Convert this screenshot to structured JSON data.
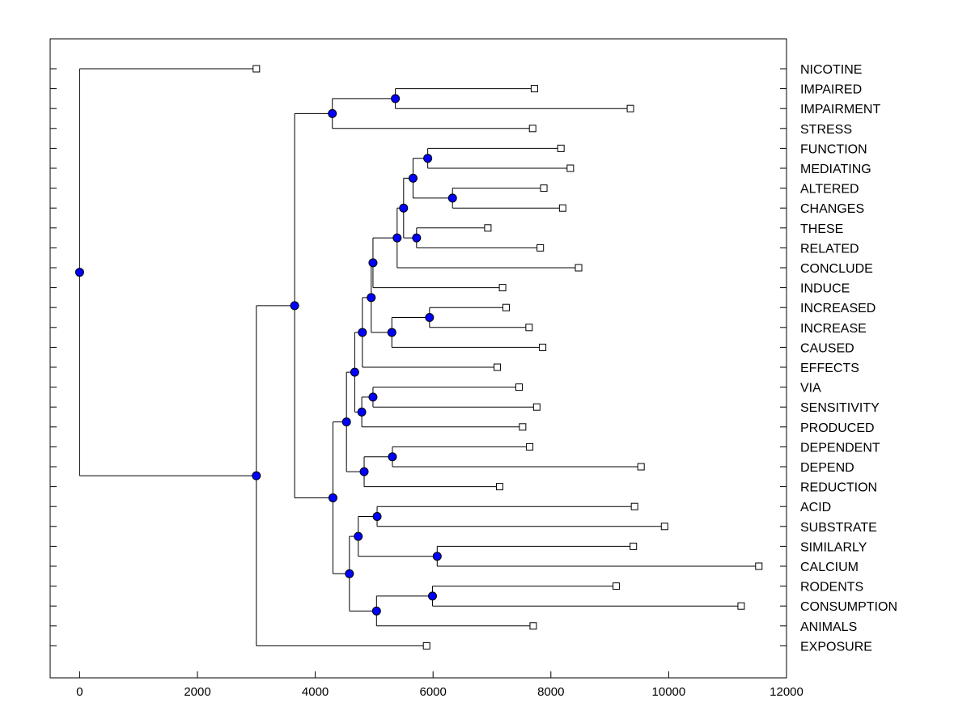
{
  "chart_data": {
    "type": "dendrogram",
    "title": "",
    "xlabel": "",
    "ylabel": "",
    "xlim": [
      -500,
      12000
    ],
    "x_ticks": [
      0,
      2000,
      4000,
      6000,
      8000,
      10000,
      12000
    ],
    "x_tick_labels": [
      "0",
      "2000",
      "4000",
      "6000",
      "8000",
      "10000",
      "12000"
    ],
    "leaves": [
      {
        "label": "NICOTINE",
        "value": 3000
      },
      {
        "label": "IMPAIRED",
        "value": 7720
      },
      {
        "label": "IMPAIRMENT",
        "value": 9350
      },
      {
        "label": "STRESS",
        "value": 7690
      },
      {
        "label": "FUNCTION",
        "value": 8170
      },
      {
        "label": "MEDIATING",
        "value": 8330
      },
      {
        "label": "ALTERED",
        "value": 7880
      },
      {
        "label": "CHANGES",
        "value": 8200
      },
      {
        "label": "THESE",
        "value": 6930
      },
      {
        "label": "RELATED",
        "value": 7820
      },
      {
        "label": "CONCLUDE",
        "value": 8470
      },
      {
        "label": "INDUCE",
        "value": 7180
      },
      {
        "label": "INCREASED",
        "value": 7240
      },
      {
        "label": "INCREASE",
        "value": 7630
      },
      {
        "label": "CAUSED",
        "value": 7860
      },
      {
        "label": "EFFECTS",
        "value": 7090
      },
      {
        "label": "VIA",
        "value": 7460
      },
      {
        "label": "SENSITIVITY",
        "value": 7760
      },
      {
        "label": "PRODUCED",
        "value": 7520
      },
      {
        "label": "DEPENDENT",
        "value": 7640
      },
      {
        "label": "DEPEND",
        "value": 9530
      },
      {
        "label": "REDUCTION",
        "value": 7130
      },
      {
        "label": "ACID",
        "value": 9420
      },
      {
        "label": "SUBSTRATE",
        "value": 9930
      },
      {
        "label": "SIMILARLY",
        "value": 9400
      },
      {
        "label": "CALCIUM",
        "value": 11530
      },
      {
        "label": "RODENTS",
        "value": 9110
      },
      {
        "label": "CONSUMPTION",
        "value": 11230
      },
      {
        "label": "ANIMALS",
        "value": 7700
      },
      {
        "label": "EXPOSURE",
        "value": 5890
      }
    ],
    "tree": {
      "h": 0,
      "c": [
        0,
        {
          "h": 3000,
          "c": [
            {
              "h": 3650,
              "c": [
                {
                  "h": 4290,
                  "c": [
                    {
                      "h": 5360,
                      "c": [
                        1,
                        2
                      ]
                    },
                    3
                  ]
                },
                {
                  "h": 4300,
                  "c": [
                    {
                      "h": 4530,
                      "c": [
                        {
                          "h": 4670,
                          "c": [
                            {
                              "h": 4800,
                              "c": [
                                {
                                  "h": 4950,
                                  "c": [
                                    {
                                      "h": 4980,
                                      "c": [
                                        {
                                          "h": 5390,
                                          "c": [
                                            {
                                              "h": 5500,
                                              "c": [
                                                {
                                                  "h": 5660,
                                                  "c": [
                                                    {
                                                      "h": 5910,
                                                      "c": [
                                                        4,
                                                        5
                                                      ]
                                                    },
                                                    {
                                                      "h": 6330,
                                                      "c": [
                                                        6,
                                                        7
                                                      ]
                                                    }
                                                  ]
                                                },
                                                {
                                                  "h": 5720,
                                                  "c": [
                                                    8,
                                                    9
                                                  ]
                                                }
                                              ]
                                            },
                                            10
                                          ]
                                        },
                                        11
                                      ]
                                    },
                                    {
                                      "h": 5300,
                                      "c": [
                                        {
                                          "h": 5940,
                                          "c": [
                                            12,
                                            13
                                          ]
                                        },
                                        14
                                      ]
                                    }
                                  ]
                                },
                                15
                              ]
                            },
                            {
                              "h": 4790,
                              "c": [
                                {
                                  "h": 4980,
                                  "c": [
                                    16,
                                    17
                                  ]
                                },
                                18
                              ]
                            }
                          ]
                        },
                        {
                          "h": 4830,
                          "c": [
                            {
                              "h": 5310,
                              "c": [
                                19,
                                20
                              ]
                            },
                            21
                          ]
                        }
                      ]
                    },
                    {
                      "h": 4580,
                      "c": [
                        {
                          "h": 4730,
                          "c": [
                            {
                              "h": 5050,
                              "c": [
                                22,
                                23
                              ]
                            },
                            {
                              "h": 6070,
                              "c": [
                                24,
                                25
                              ]
                            }
                          ]
                        },
                        {
                          "h": 5040,
                          "c": [
                            {
                              "h": 5990,
                              "c": [
                                26,
                                27
                              ]
                            },
                            28
                          ]
                        }
                      ]
                    }
                  ]
                }
              ]
            },
            29
          ]
        }
      ]
    },
    "colors": {
      "node": "#0000ff",
      "leaf": "#ffffff",
      "line": "#000000"
    }
  }
}
